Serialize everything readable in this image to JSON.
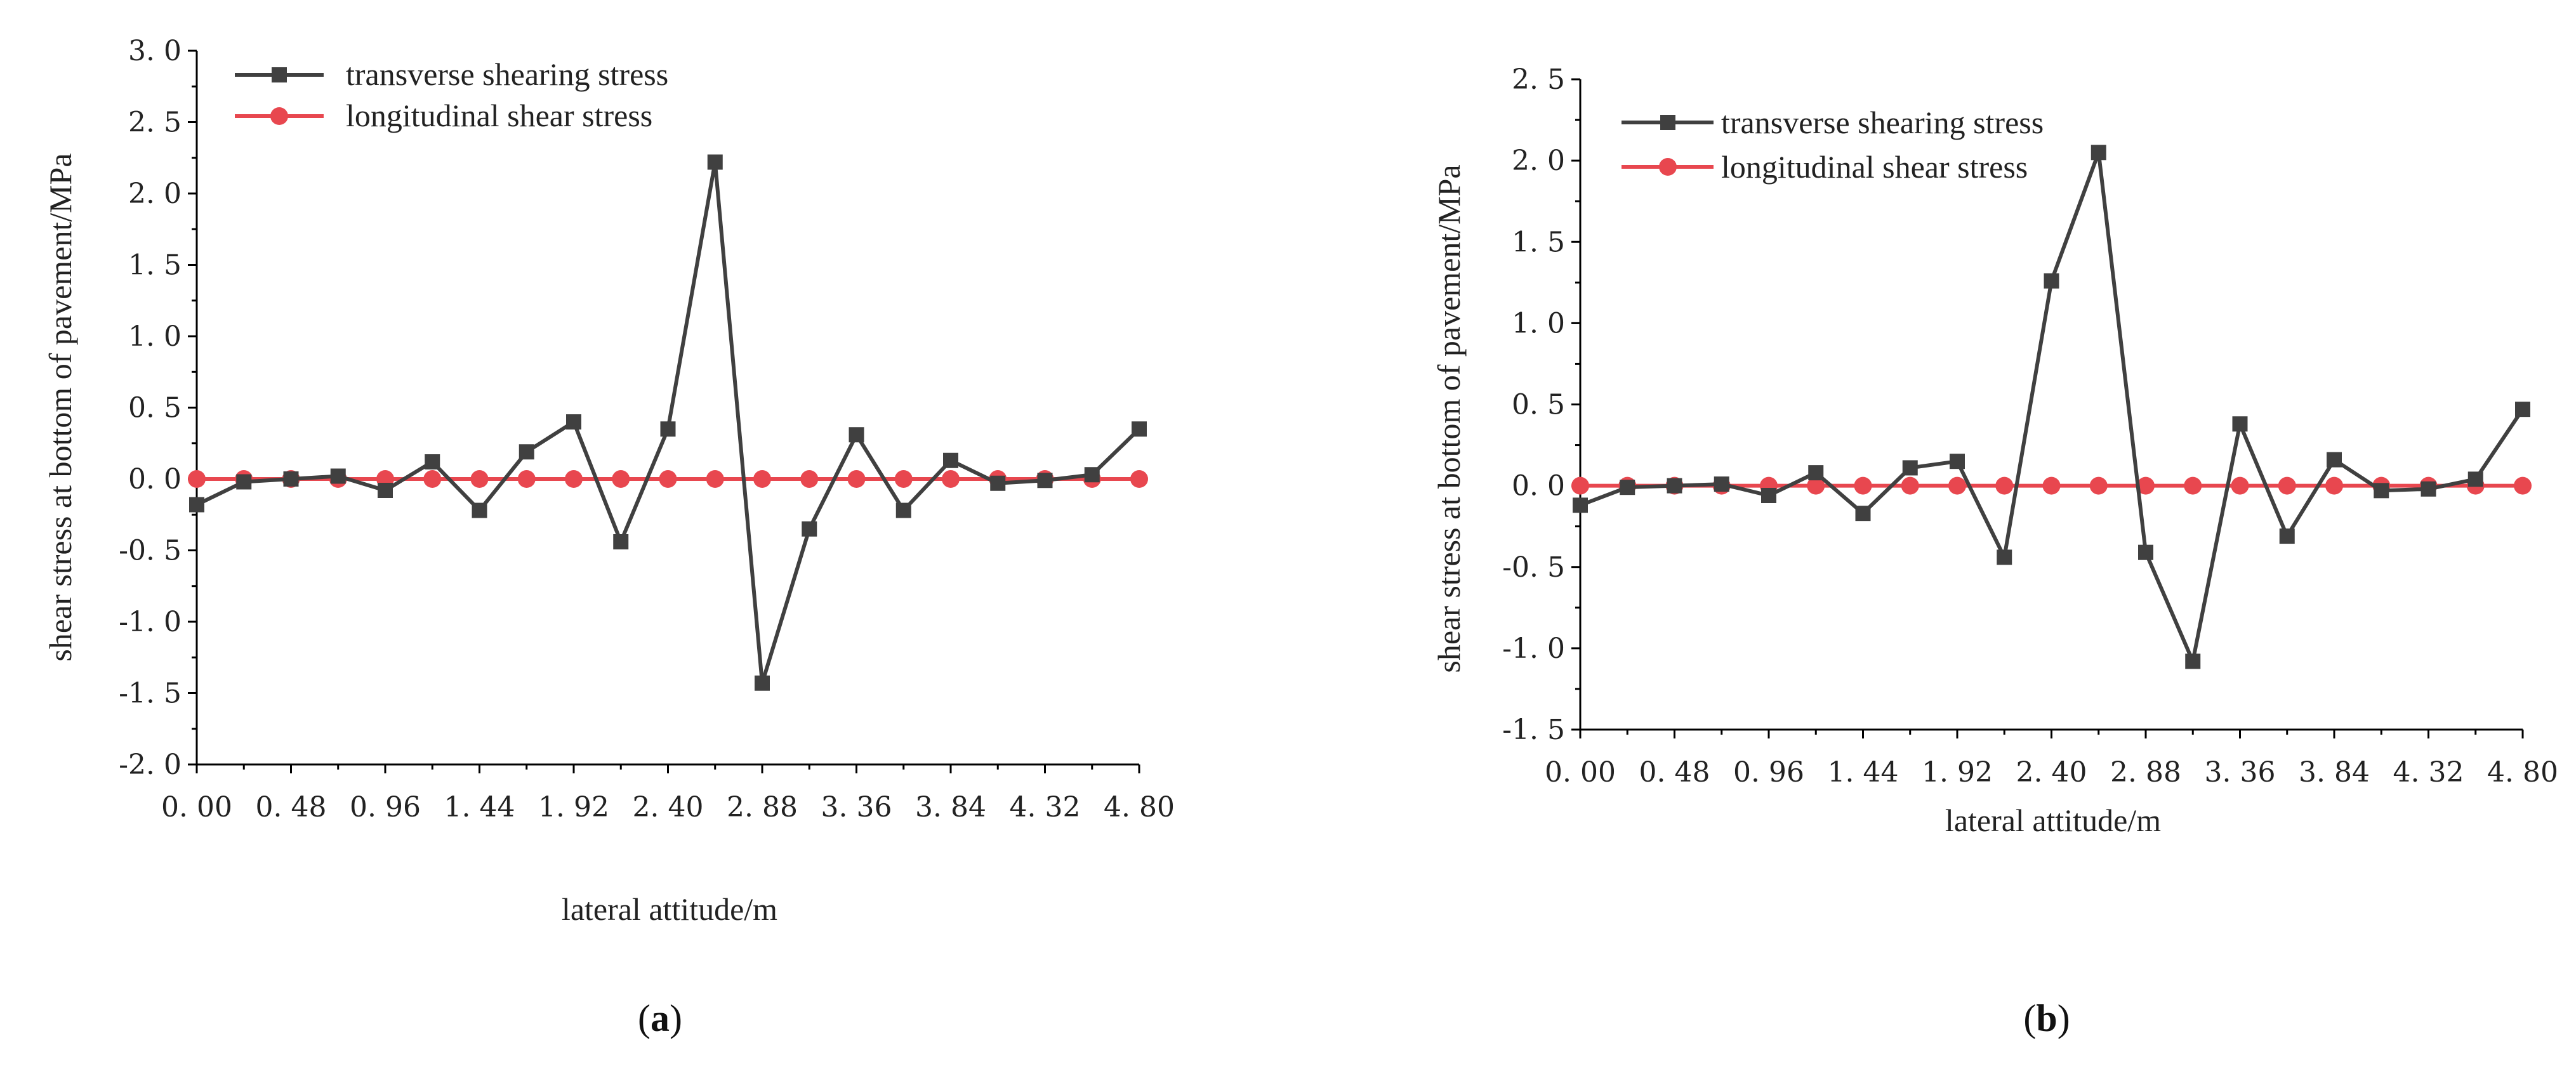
{
  "chart_data": [
    {
      "type": "line",
      "caption": "(a)",
      "caption_letter": "a",
      "xlabel": "lateral attitude/m",
      "ylabel": "shear stress at bottom of pavement/MPa",
      "xlim": [
        0,
        4.8
      ],
      "ylim": [
        -2.0,
        3.0
      ],
      "x_ticks": [
        "0. 00",
        "0. 48",
        "0. 96",
        "1. 44",
        "1. 92",
        "2. 40",
        "2. 88",
        "3. 36",
        "3. 84",
        "4. 32",
        "4. 80"
      ],
      "y_ticks": [
        "-2. 0",
        "-1. 5",
        "-1. 0",
        "-0. 5",
        "0. 0",
        "0. 5",
        "1. 0",
        "1. 5",
        "2. 0",
        "2. 5",
        "3. 0"
      ],
      "x": [
        0,
        0.24,
        0.48,
        0.72,
        0.96,
        1.2,
        1.44,
        1.68,
        1.92,
        2.16,
        2.4,
        2.64,
        2.88,
        3.12,
        3.36,
        3.6,
        3.84,
        4.08,
        4.32,
        4.56,
        4.8
      ],
      "series": [
        {
          "name": "transverse shearing stress",
          "color": "#404040",
          "marker": "square",
          "values": [
            -0.18,
            -0.02,
            0.0,
            0.02,
            -0.08,
            0.12,
            -0.22,
            0.19,
            0.4,
            -0.44,
            0.35,
            2.22,
            -1.43,
            -0.35,
            0.31,
            -0.22,
            0.13,
            -0.03,
            -0.01,
            0.03,
            0.35
          ]
        },
        {
          "name": "longitudinal shear stress",
          "color": "#e8474f",
          "marker": "circle",
          "values": [
            0,
            0,
            0,
            0,
            0,
            0,
            0,
            0,
            0,
            0,
            0,
            0,
            0,
            0,
            0,
            0,
            0,
            0,
            0,
            0,
            0
          ]
        }
      ]
    },
    {
      "type": "line",
      "caption": "(b)",
      "caption_letter": "b",
      "xlabel": "lateral attitude/m",
      "ylabel": "shear stress at bottom of pavement/MPa",
      "xlim": [
        0,
        4.8
      ],
      "ylim": [
        -1.5,
        2.5
      ],
      "x_ticks": [
        "0. 00",
        "0. 48",
        "0. 96",
        "1. 44",
        "1. 92",
        "2. 40",
        "2. 88",
        "3. 36",
        "3. 84",
        "4. 32",
        "4. 80"
      ],
      "y_ticks": [
        "-1. 5",
        "-1. 0",
        "-0. 5",
        "0. 0",
        "0. 5",
        "1. 0",
        "1. 5",
        "2. 0",
        "2. 5"
      ],
      "x": [
        0,
        0.24,
        0.48,
        0.72,
        0.96,
        1.2,
        1.44,
        1.68,
        1.92,
        2.16,
        2.4,
        2.64,
        2.88,
        3.12,
        3.36,
        3.6,
        3.84,
        4.08,
        4.32,
        4.56,
        4.8
      ],
      "series": [
        {
          "name": "transverse shearing stress",
          "color": "#404040",
          "marker": "square",
          "values": [
            -0.12,
            -0.01,
            0.0,
            0.01,
            -0.06,
            0.08,
            -0.17,
            0.11,
            0.15,
            -0.44,
            1.26,
            2.05,
            -0.41,
            -1.08,
            0.38,
            -0.31,
            0.16,
            -0.03,
            -0.02,
            0.04,
            0.47
          ]
        },
        {
          "name": "longitudinal shear stress",
          "color": "#e8474f",
          "marker": "circle",
          "values": [
            0,
            0,
            0,
            0,
            0,
            0,
            0,
            0,
            0,
            0,
            0,
            0,
            0,
            0,
            0,
            0,
            0,
            0,
            0,
            0,
            0
          ]
        }
      ]
    }
  ]
}
